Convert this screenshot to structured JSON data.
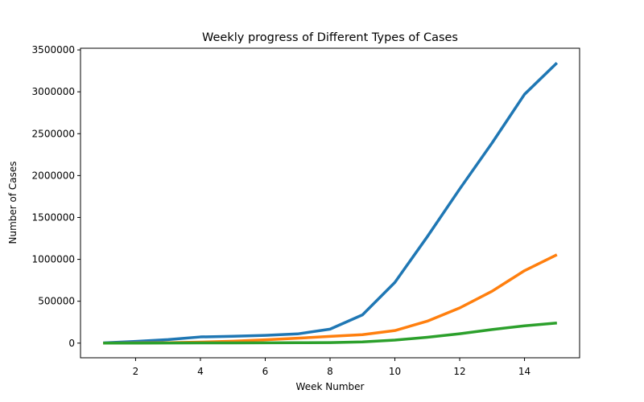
{
  "chart_data": {
    "type": "line",
    "title": "Weekly progress of Different Types of Cases",
    "xlabel": "Week Number",
    "ylabel": "Number of Cases",
    "xlim": [
      0.3,
      15.7
    ],
    "ylim": [
      -175000,
      3520000
    ],
    "x_ticks": [
      2,
      4,
      6,
      8,
      10,
      12,
      14
    ],
    "y_ticks": [
      0,
      500000,
      1000000,
      1500000,
      2000000,
      2500000,
      3000000,
      3500000
    ],
    "grid": false,
    "legend": "none",
    "x": [
      1,
      2,
      3,
      4,
      5,
      6,
      7,
      8,
      9,
      10,
      11,
      12,
      13,
      14,
      15
    ],
    "series": [
      {
        "color": "#1f77b4",
        "values": [
          3000,
          20000,
          42000,
          74000,
          82000,
          92000,
          110000,
          167000,
          337000,
          725000,
          1270000,
          1840000,
          2390000,
          2970000,
          3345000
        ]
      },
      {
        "color": "#ff7f0e",
        "values": [
          500,
          2000,
          5000,
          12000,
          23000,
          40000,
          59000,
          80000,
          101000,
          150000,
          262000,
          420000,
          620000,
          865000,
          1055000
        ]
      },
      {
        "color": "#2ca02c",
        "values": [
          100,
          500,
          1000,
          2000,
          3000,
          4000,
          5000,
          6500,
          15000,
          36000,
          70000,
          112000,
          162000,
          207000,
          240000
        ]
      }
    ]
  }
}
